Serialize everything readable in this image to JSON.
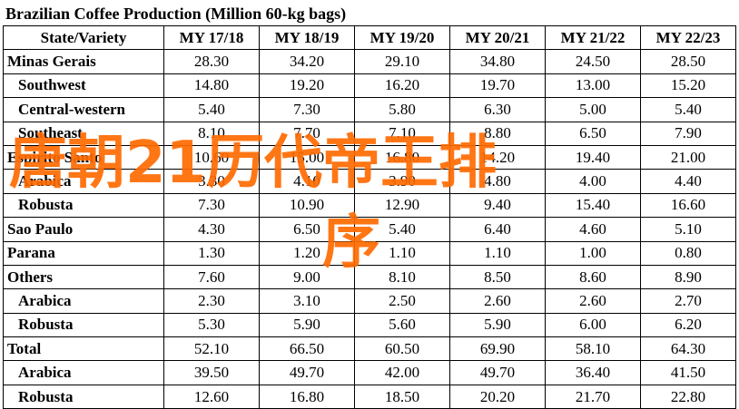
{
  "title": "Brazilian Coffee Production (Million 60-kg bags)",
  "header": [
    "State/Variety",
    "MY 17/18",
    "MY 18/19",
    "MY 19/20",
    "MY 20/21",
    "MY 21/22",
    "MY 22/23"
  ],
  "rows": [
    {
      "label": "Minas Gerais",
      "sub": false,
      "values": [
        "28.30",
        "34.20",
        "29.10",
        "34.80",
        "24.50",
        "28.50"
      ]
    },
    {
      "label": "Southwest",
      "sub": true,
      "values": [
        "14.80",
        "19.20",
        "16.20",
        "19.70",
        "13.00",
        "15.20"
      ]
    },
    {
      "label": "Central-western",
      "sub": true,
      "values": [
        "5.40",
        "7.30",
        "5.80",
        "6.30",
        "5.00",
        "5.40"
      ]
    },
    {
      "label": "Southeast",
      "sub": true,
      "values": [
        "8.10",
        "7.70",
        "7.10",
        "8.80",
        "6.50",
        "7.90"
      ]
    },
    {
      "label": "Espirito Santo",
      "sub": false,
      "values": [
        "10.60",
        "15.00",
        "16.80",
        "14.20",
        "19.40",
        "21.00"
      ]
    },
    {
      "label": "Arabica",
      "sub": true,
      "values": [
        "3.30",
        "4.10",
        "3.90",
        "4.80",
        "4.00",
        "4.40"
      ]
    },
    {
      "label": "Robusta",
      "sub": true,
      "values": [
        "7.30",
        "10.90",
        "12.90",
        "9.40",
        "15.40",
        "16.60"
      ]
    },
    {
      "label": "Sao Paulo",
      "sub": false,
      "values": [
        "4.30",
        "6.50",
        "5.40",
        "6.40",
        "4.60",
        "5.10"
      ]
    },
    {
      "label": "Parana",
      "sub": false,
      "values": [
        "1.30",
        "1.20",
        "1.10",
        "1.10",
        "1.00",
        "0.80"
      ]
    },
    {
      "label": "Others",
      "sub": false,
      "values": [
        "7.60",
        "9.00",
        "8.10",
        "8.50",
        "8.60",
        "8.90"
      ]
    },
    {
      "label": "Arabica",
      "sub": true,
      "values": [
        "2.30",
        "3.10",
        "2.50",
        "2.60",
        "2.60",
        "2.70"
      ]
    },
    {
      "label": "Robusta",
      "sub": true,
      "values": [
        "5.30",
        "5.90",
        "5.60",
        "5.90",
        "6.00",
        "6.20"
      ]
    },
    {
      "label": "Total",
      "sub": false,
      "values": [
        "52.10",
        "66.50",
        "60.50",
        "69.90",
        "58.10",
        "64.30"
      ]
    },
    {
      "label": "Arabica",
      "sub": true,
      "values": [
        "39.50",
        "49.70",
        "42.00",
        "49.70",
        "36.40",
        "41.50"
      ]
    },
    {
      "label": "Robusta",
      "sub": true,
      "values": [
        "12.60",
        "16.80",
        "18.50",
        "20.20",
        "21.70",
        "22.80"
      ]
    }
  ],
  "watermark": {
    "line1": "唐朝21历代帝王排",
    "line2": "序",
    "color": "#ff6a00"
  }
}
